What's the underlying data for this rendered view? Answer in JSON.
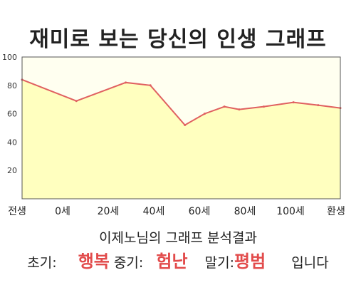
{
  "chart_data": {
    "type": "area",
    "title": "재미로 보는 당신의 인생 그래프",
    "x_tick_labels": [
      "전생",
      "0세",
      "20세",
      "40세",
      "60세",
      "80세",
      "100세",
      "환생"
    ],
    "y_ticks": [
      20,
      40,
      60,
      80,
      100
    ],
    "ylim": [
      0,
      100
    ],
    "xlabel": "",
    "ylabel": "",
    "grid": false,
    "legend": "none",
    "series": [
      {
        "x": [
          -25,
          -3,
          17,
          27,
          41,
          49,
          57,
          63,
          73,
          85,
          95,
          104
        ],
        "values": [
          84,
          69,
          82,
          80,
          52,
          60,
          65,
          63,
          65,
          68,
          66,
          64
        ]
      }
    ],
    "colors": {
      "fill": "#ffffbf",
      "line": "#e06060",
      "plot_bg": "#fffff0",
      "axis": "#555555"
    }
  },
  "analysis": {
    "heading": "이제노님의 그래프 분석결과",
    "early_label": "초기:",
    "early_value": "행복",
    "mid_label": "중기:",
    "mid_value": "험난",
    "late_label": "말기:",
    "late_value": "평범",
    "ending": "입니다"
  }
}
